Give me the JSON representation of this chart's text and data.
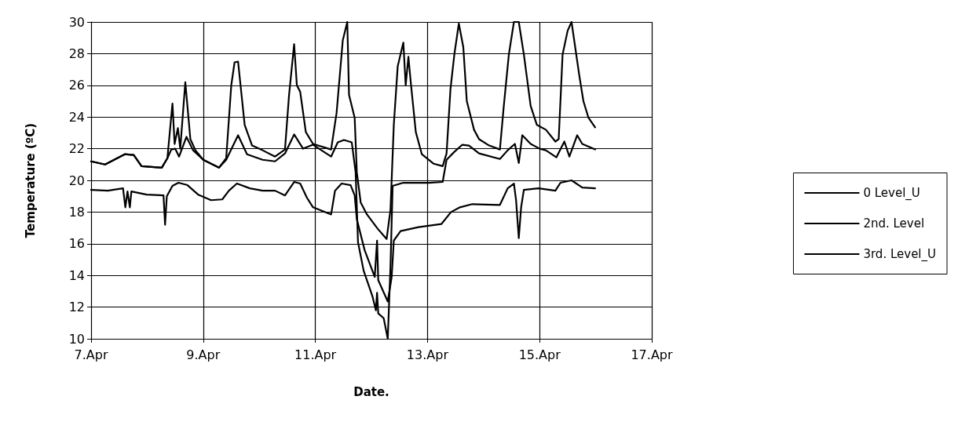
{
  "chart_data": {
    "type": "line",
    "xlabel": "Date.",
    "ylabel": "Temperature (ºC)",
    "xlim": [
      "--04-07",
      "--04-17"
    ],
    "xticks": [
      {
        "value": "--04-07",
        "label": "7.Apr"
      },
      {
        "value": "--04-09",
        "label": "9.Apr"
      },
      {
        "value": "--04-11",
        "label": "11.Apr"
      },
      {
        "value": "--04-13",
        "label": "13.Apr"
      },
      {
        "value": "--04-15",
        "label": "15.Apr"
      },
      {
        "value": "--04-17",
        "label": "17.Apr"
      }
    ],
    "ylim": [
      10,
      30
    ],
    "yticks": [
      10,
      12,
      14,
      16,
      18,
      20,
      22,
      24,
      26,
      28,
      30
    ],
    "grid": true,
    "legend": "right",
    "marker": "none",
    "line_style": "solid",
    "series": [
      {
        "name": "0 Level_U",
        "color": "#000000",
        "x": [
          "--04-07T00:00",
          "--04-07T07:10",
          "--04-07T13:40",
          "--04-07T14:40",
          "--04-07T15:35",
          "--04-07T16:35",
          "--04-07T17:15",
          "--04-07T23:45",
          "--04-08T07:00",
          "--04-08T07:40",
          "--04-08T08:25",
          "--04-08T10:50",
          "--04-08T13:25",
          "--04-08T17:15",
          "--04-08T21:50",
          "--04-09T03:20",
          "--04-09T08:10",
          "--04-09T11:00",
          "--04-09T14:25",
          "--04-09T19:55",
          "--04-10T01:25",
          "--04-10T06:45",
          "--04-10T11:00",
          "--04-10T14:55",
          "--04-10T17:30",
          "--04-10T20:25",
          "--04-10T23:00",
          "--04-11T06:45",
          "--04-11T08:25",
          "--04-11T11:15",
          "--04-11T15:05",
          "--04-11T16:50",
          "--04-11T17:45",
          "--04-11T21:05",
          "--04-12T01:25",
          "--04-12T02:25",
          "--04-12T02:55",
          "--04-12T07:00",
          "--04-12T08:40",
          "--04-12T09:35",
          "--04-12T12:30",
          "--04-12T20:10",
          "--04-13T06:00",
          "--04-13T10:05",
          "--04-13T13:55",
          "--04-13T19:10",
          "--04-14T07:00",
          "--04-14T10:20",
          "--04-14T13:00",
          "--04-14T13:55",
          "--04-14T15:05",
          "--04-14T16:05",
          "--04-14T17:15",
          "--04-14T23:30",
          "--04-15T06:45",
          "--04-15T08:55",
          "--04-15T13:40",
          "--04-15T18:15",
          "--04-15T23:45"
        ],
        "values": [
          19.4,
          19.35,
          19.5,
          18.3,
          19.3,
          18.3,
          19.3,
          19.1,
          19.05,
          17.2,
          19.0,
          19.65,
          19.85,
          19.7,
          19.1,
          18.75,
          18.8,
          19.35,
          19.8,
          19.5,
          19.35,
          19.35,
          19.05,
          19.9,
          19.8,
          18.9,
          18.3,
          17.85,
          19.35,
          19.8,
          19.7,
          19.05,
          17.55,
          15.6,
          13.9,
          16.2,
          13.7,
          12.35,
          13.9,
          16.2,
          16.8,
          17.05,
          17.25,
          18.0,
          18.3,
          18.5,
          18.45,
          19.5,
          19.8,
          18.75,
          16.35,
          18.3,
          19.4,
          19.5,
          19.35,
          19.85,
          20.0,
          19.55,
          19.5
        ]
      },
      {
        "name": "2nd. Level",
        "color": "#000000",
        "x": [
          "--04-07T00:00",
          "--04-07T06:00",
          "--04-07T14:24",
          "--04-07T18:15",
          "--04-07T21:35",
          "--04-08T06:15",
          "--04-08T08:40",
          "--04-08T10:20",
          "--04-08T12:00",
          "--04-08T13:40",
          "--04-08T16:50",
          "--04-08T19:40",
          "--04-09T00:00",
          "--04-09T06:45",
          "--04-09T09:50",
          "--04-09T14:55",
          "--04-09T18:45",
          "--04-10T01:25",
          "--04-10T06:45",
          "--04-10T11:00",
          "--04-10T14:55",
          "--04-10T18:45",
          "--04-10T23:00",
          "--04-11T06:45",
          "--04-11T09:35",
          "--04-11T12:15",
          "--04-11T15:35",
          "--04-11T17:15",
          "--04-11T18:15",
          "--04-11T20:40",
          "--04-12T00:30",
          "--04-12T01:55",
          "--04-12T02:25",
          "--04-12T02:55",
          "--04-12T05:15",
          "--04-12T07:00",
          "--04-12T08:10",
          "--04-12T09:05",
          "--04-12T13:40",
          "--04-13T00:30",
          "--04-13T06:30",
          "--04-13T08:10",
          "--04-13T11:30",
          "--04-13T14:55",
          "--04-13T17:45",
          "--04-13T22:05",
          "--04-14T07:00",
          "--04-14T10:20",
          "--04-14T13:25",
          "--04-14T15:05",
          "--04-14T16:35",
          "--04-14T20:10",
          "--04-15T00:00",
          "--04-15T02:40",
          "--04-15T07:10",
          "--04-15T10:35",
          "--04-15T12:45",
          "--04-15T16:05",
          "--04-15T18:15",
          "--04-15T23:45"
        ],
        "values": [
          21.2,
          21.0,
          21.65,
          21.6,
          20.9,
          20.8,
          21.4,
          21.95,
          22.0,
          21.5,
          22.75,
          21.9,
          21.3,
          20.8,
          21.3,
          22.85,
          21.65,
          21.3,
          21.2,
          21.7,
          22.9,
          22.0,
          22.25,
          21.5,
          22.4,
          22.55,
          22.4,
          20.5,
          16.1,
          14.3,
          12.65,
          11.8,
          12.9,
          11.6,
          11.3,
          10.0,
          14.6,
          19.65,
          19.85,
          19.85,
          19.9,
          21.3,
          21.8,
          22.25,
          22.2,
          21.7,
          21.35,
          21.9,
          22.3,
          21.1,
          22.85,
          22.3,
          22.0,
          21.9,
          21.45,
          22.45,
          21.5,
          22.85,
          22.3,
          21.95
        ]
      },
      {
        "name": "3rd. Level_U",
        "color": "#000000",
        "x": [
          "--04-07T00:00",
          "--04-07T06:00",
          "--04-07T14:24",
          "--04-07T18:15",
          "--04-07T21:35",
          "--04-08T06:15",
          "--04-08T08:40",
          "--04-08T10:50",
          "--04-08T11:45",
          "--04-08T13:10",
          "--04-08T14:10",
          "--04-08T16:20",
          "--04-08T18:30",
          "--04-08T20:40",
          "--04-09T00:00",
          "--04-09T06:45",
          "--04-09T09:50",
          "--04-09T12:00",
          "--04-09T13:25",
          "--04-09T14:55",
          "--04-09T17:45",
          "--04-09T20:55",
          "--04-10T01:25",
          "--04-10T06:45",
          "--04-10T11:00",
          "--04-10T12:45",
          "--04-10T14:55",
          "--04-10T16:05",
          "--04-10T17:30",
          "--04-10T19:55",
          "--04-10T23:00",
          "--04-11T06:45",
          "--04-11T09:05",
          "--04-11T11:45",
          "--04-11T13:40",
          "--04-11T14:25",
          "--04-11T16:50",
          "--04-11T17:45",
          "--04-11T19:25",
          "--04-11T22:05",
          "--04-12T02:40",
          "--04-12T06:30",
          "--04-12T08:10",
          "--04-12T09:35",
          "--04-12T11:15",
          "--04-12T13:40",
          "--04-12T14:40",
          "--04-12T15:50",
          "--04-12T16:50",
          "--04-12T19:00",
          "--04-12T21:35",
          "--04-13T02:40",
          "--04-13T06:30",
          "--04-13T08:10",
          "--04-13T09:50",
          "--04-13T11:30",
          "--04-13T13:25",
          "--04-13T15:20",
          "--04-13T16:50",
          "--04-13T19:55",
          "--04-13T22:05",
          "--04-14T02:25",
          "--04-14T07:00",
          "--04-14T08:40",
          "--04-14T10:50",
          "--04-14T13:00",
          "--04-14T15:05",
          "--04-14T17:15",
          "--04-14T20:10",
          "--04-14T22:50",
          "--04-15T02:40",
          "--04-15T06:45",
          "--04-15T08:10",
          "--04-15T09:50",
          "--04-15T12:00",
          "--04-15T13:40",
          "--04-15T17:00",
          "--04-15T18:45",
          "--04-15T20:55",
          "--04-15T23:45"
        ],
        "values": [
          21.2,
          21.0,
          21.65,
          21.6,
          20.9,
          20.8,
          21.4,
          24.85,
          22.3,
          23.3,
          22.0,
          26.2,
          22.6,
          21.9,
          21.3,
          20.8,
          21.4,
          26.0,
          27.45,
          27.5,
          23.5,
          22.2,
          21.9,
          21.5,
          21.95,
          25.4,
          28.6,
          26.0,
          25.6,
          23.05,
          22.3,
          21.95,
          24.25,
          28.85,
          30.0,
          25.4,
          23.95,
          20.5,
          18.6,
          17.85,
          16.95,
          16.3,
          18.15,
          23.5,
          27.2,
          28.7,
          26.0,
          27.8,
          26.2,
          23.05,
          21.65,
          21.05,
          20.9,
          21.7,
          25.75,
          27.95,
          29.9,
          28.4,
          25.0,
          23.2,
          22.6,
          22.2,
          21.95,
          24.7,
          27.95,
          30.0,
          30.0,
          27.95,
          24.7,
          23.5,
          23.2,
          22.45,
          22.6,
          27.95,
          29.45,
          30.0,
          26.6,
          25.0,
          23.95,
          23.35
        ]
      }
    ]
  }
}
